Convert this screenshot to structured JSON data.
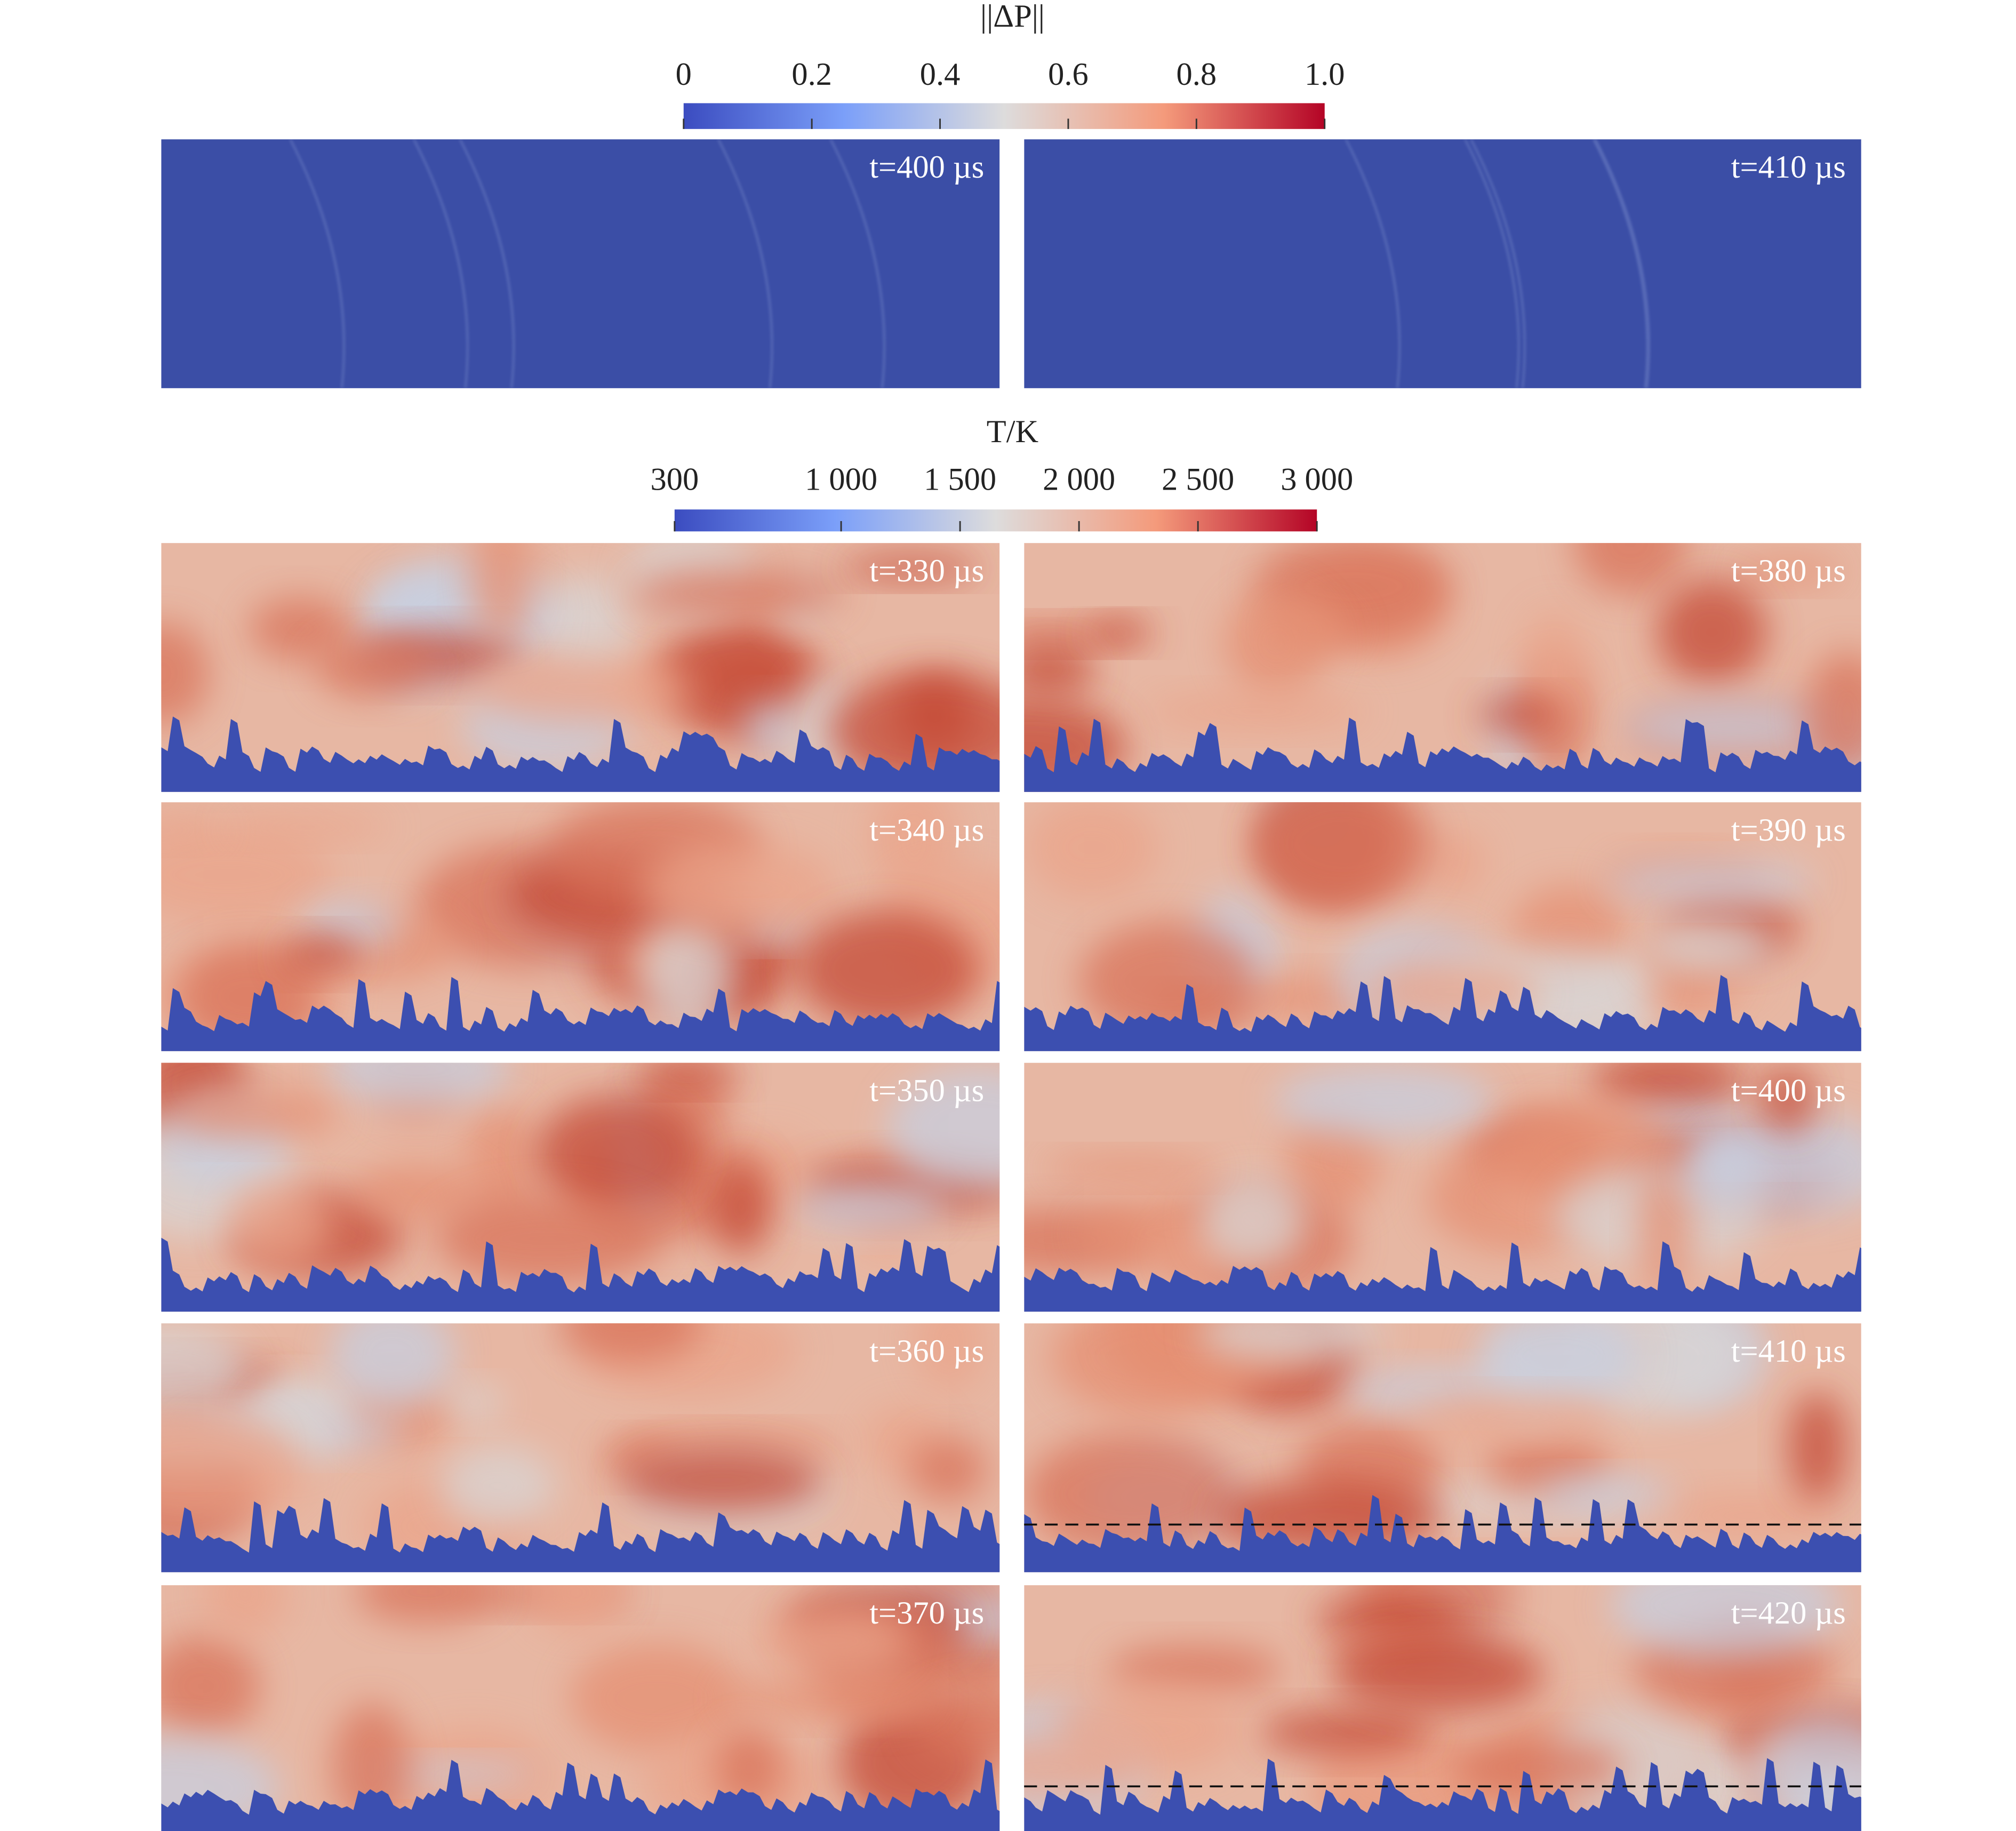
{
  "pressure_colorbar": {
    "title": "||ΔP||",
    "range": [
      0,
      1
    ],
    "ticks": [
      0,
      0.2,
      0.4,
      0.6,
      0.8,
      {
        "value": 1,
        "label": "1.0"
      }
    ]
  },
  "pressure_panels": [
    {
      "label": "t=400 µs"
    },
    {
      "label": "t=410 µs"
    }
  ],
  "temperature_colorbar": {
    "title": "T/K",
    "range": [
      300,
      3000
    ],
    "ticks": [
      300,
      {
        "value": 1000,
        "label": "1 000"
      },
      {
        "value": 1500,
        "label": "1 500"
      },
      {
        "value": 2000,
        "label": "2 000"
      },
      {
        "value": 2500,
        "label": "2 500"
      },
      {
        "value": 3000,
        "label": "3 000"
      }
    ]
  },
  "temperature_panels": [
    {
      "label": "t=330 µs"
    },
    {
      "label": "t=340 µs"
    },
    {
      "label": "t=350 µs"
    },
    {
      "label": "t=360 µs"
    },
    {
      "label": "t=370 µs"
    },
    {
      "label": "t=380 µs"
    },
    {
      "label": "t=390 µs"
    },
    {
      "label": "t=400 µs"
    },
    {
      "label": "t=410 µs"
    },
    {
      "label": "t=420 µs"
    }
  ]
}
